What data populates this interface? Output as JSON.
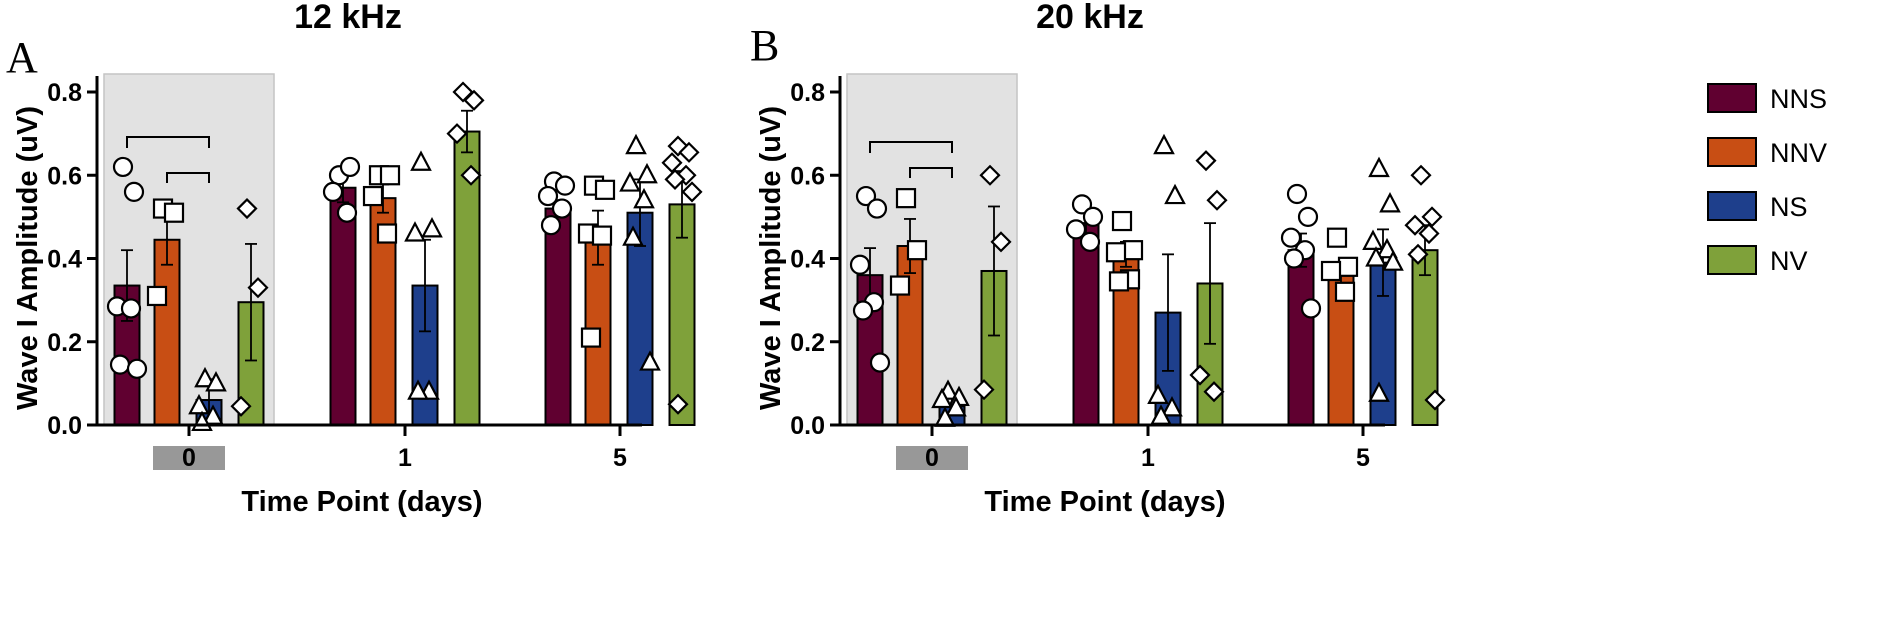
{
  "chart_data": [
    {
      "type": "bar",
      "panel_label": "A",
      "title": "12 kHz",
      "xlabel": "Time Point (days)",
      "ylabel": "Wave I Amplitude (uV)",
      "ylim": [
        0,
        0.8
      ],
      "yticks": [
        "0.0",
        "0.2",
        "0.4",
        "0.6",
        "0.8"
      ],
      "categories": [
        "0",
        "1",
        "5"
      ],
      "shaded_category": "0",
      "series": [
        {
          "name": "NNS",
          "values": [
            0.335,
            0.57,
            0.52
          ],
          "errors": [
            0.085,
            0.035,
            0.02
          ],
          "points": [
            [
              0.62,
              0.56,
              0.285,
              0.28,
              0.145,
              0.135
            ],
            [
              0.6,
              0.62,
              0.56,
              0.51
            ],
            [
              0.585,
              0.575,
              0.55,
              0.52,
              0.48
            ]
          ]
        },
        {
          "name": "NNV",
          "values": [
            0.445,
            0.545,
            0.45
          ],
          "errors": [
            0.06,
            0.035,
            0.065
          ],
          "points": [
            [
              0.52,
              0.51,
              0.31
            ],
            [
              0.6,
              0.6,
              0.55,
              0.46
            ],
            [
              0.575,
              0.565,
              0.46,
              0.455,
              0.21
            ]
          ]
        },
        {
          "name": "NS",
          "values": [
            0.06,
            0.335,
            0.51
          ],
          "errors": [
            0.05,
            0.11,
            0.08
          ],
          "points": [
            [
              0.11,
              0.1,
              0.045,
              0.02,
              0.005
            ],
            [
              0.63,
              0.47,
              0.46,
              0.08,
              0.08
            ],
            [
              0.67,
              0.6,
              0.58,
              0.54,
              0.45,
              0.15
            ]
          ]
        },
        {
          "name": "NV",
          "values": [
            0.295,
            0.705,
            0.53
          ],
          "errors": [
            0.14,
            0.05,
            0.08
          ],
          "points": [
            [
              0.52,
              0.33,
              0.045
            ],
            [
              0.8,
              0.78,
              0.7,
              0.6
            ],
            [
              0.67,
              0.655,
              0.63,
              0.6,
              0.59,
              0.56,
              0.05
            ]
          ]
        }
      ],
      "significance_brackets": [
        [
          "NNS",
          "NS"
        ],
        [
          "NNV",
          "NS"
        ]
      ]
    },
    {
      "type": "bar",
      "panel_label": "B",
      "title": "20 kHz",
      "xlabel": "Time Point (days)",
      "ylabel": "Wave I Amplitude (uV)",
      "ylim": [
        0,
        0.8
      ],
      "yticks": [
        "0.0",
        "0.2",
        "0.4",
        "0.6",
        "0.8"
      ],
      "categories": [
        "0",
        "1",
        "5"
      ],
      "shaded_category": "0",
      "series": [
        {
          "name": "NNS",
          "values": [
            0.36,
            0.485,
            0.42
          ],
          "errors": [
            0.065,
            0.03,
            0.04
          ],
          "points": [
            [
              0.55,
              0.52,
              0.385,
              0.295,
              0.275,
              0.15
            ],
            [
              0.53,
              0.5,
              0.47,
              0.44
            ],
            [
              0.555,
              0.5,
              0.45,
              0.42,
              0.4,
              0.28
            ]
          ]
        },
        {
          "name": "NNV",
          "values": [
            0.43,
            0.41,
            0.36
          ],
          "errors": [
            0.065,
            0.03,
            0.03
          ],
          "points": [
            [
              0.545,
              0.42,
              0.335
            ],
            [
              0.49,
              0.42,
              0.415,
              0.35,
              0.345
            ],
            [
              0.45,
              0.38,
              0.37,
              0.32
            ]
          ]
        },
        {
          "name": "NS",
          "values": [
            0.045,
            0.27,
            0.39
          ],
          "errors": [
            0.02,
            0.14,
            0.08
          ],
          "points": [
            [
              0.08,
              0.065,
              0.06,
              0.04,
              0.015
            ],
            [
              0.67,
              0.55,
              0.07,
              0.04,
              0.02
            ],
            [
              0.615,
              0.53,
              0.44,
              0.42,
              0.4,
              0.39,
              0.075
            ]
          ]
        },
        {
          "name": "NV",
          "values": [
            0.37,
            0.34,
            0.42
          ],
          "errors": [
            0.155,
            0.145,
            0.06
          ],
          "points": [
            [
              0.6,
              0.44,
              0.085
            ],
            [
              0.635,
              0.54,
              0.12,
              0.08
            ],
            [
              0.6,
              0.5,
              0.48,
              0.46,
              0.41,
              0.06
            ]
          ]
        }
      ],
      "significance_brackets": [
        [
          "NNS",
          "NS"
        ],
        [
          "NNV",
          "NS"
        ]
      ]
    }
  ],
  "legend": {
    "placement": "right",
    "entries": [
      {
        "name": "NNS",
        "color": "#600030"
      },
      {
        "name": "NNV",
        "color": "#c84e14"
      },
      {
        "name": "NS",
        "color": "#1e3f8c"
      },
      {
        "name": "NV",
        "color": "#7fa13a"
      }
    ]
  },
  "style": {
    "shade_color": "#e2e2e2",
    "shade_border": "#c4c4c4",
    "day0_marker_color": "#989898",
    "marker_shapes": {
      "NNS": "circle",
      "NNV": "square",
      "NS": "triangle",
      "NV": "diamond"
    }
  }
}
